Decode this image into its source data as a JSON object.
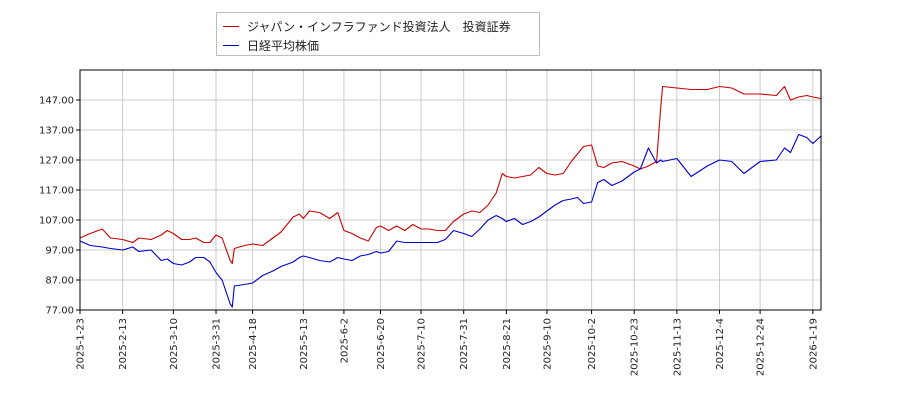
{
  "chart_data": {
    "type": "line",
    "title": "",
    "xlabel": "",
    "ylabel": "",
    "ylim": [
      77.0,
      157.0
    ],
    "yticks": [
      77.0,
      87.0,
      97.0,
      107.0,
      117.0,
      127.0,
      137.0,
      147.0
    ],
    "ytick_labels": [
      "77.00",
      "87.00",
      "97.00",
      "107.00",
      "117.00",
      "127.00",
      "137.00",
      "147.00"
    ],
    "x_start": "2025-01-23",
    "x_end": "2026-01-23",
    "xticks": [
      "2025-1-23",
      "2025-2-13",
      "2025-3-10",
      "2025-3-31",
      "2025-4-18",
      "2025-5-13",
      "2025-6-2",
      "2025-6-20",
      "2025-7-10",
      "2025-7-31",
      "2025-8-21",
      "2025-9-10",
      "2025-10-2",
      "2025-10-23",
      "2025-11-13",
      "2025-12-4",
      "2025-12-24",
      "2026-1-19"
    ],
    "grid": true,
    "legend_position": "top-left",
    "series": [
      {
        "name": "ジャパン・インフラファンド投資法人　投資証券",
        "color": "#cc0000",
        "points": [
          [
            "2025-01-23",
            101.0
          ],
          [
            "2025-01-28",
            102.5
          ],
          [
            "2025-02-03",
            104.0
          ],
          [
            "2025-02-07",
            101.0
          ],
          [
            "2025-02-13",
            100.5
          ],
          [
            "2025-02-18",
            99.5
          ],
          [
            "2025-02-21",
            101.0
          ],
          [
            "2025-02-27",
            100.5
          ],
          [
            "2025-03-04",
            102.0
          ],
          [
            "2025-03-07",
            103.5
          ],
          [
            "2025-03-10",
            102.5
          ],
          [
            "2025-03-14",
            100.5
          ],
          [
            "2025-03-18",
            100.5
          ],
          [
            "2025-03-21",
            101.0
          ],
          [
            "2025-03-25",
            99.5
          ],
          [
            "2025-03-28",
            99.5
          ],
          [
            "2025-03-31",
            102.0
          ],
          [
            "2025-04-03",
            101.0
          ],
          [
            "2025-04-07",
            93.5
          ],
          [
            "2025-04-08",
            92.5
          ],
          [
            "2025-04-09",
            97.5
          ],
          [
            "2025-04-14",
            98.5
          ],
          [
            "2025-04-18",
            99.0
          ],
          [
            "2025-04-23",
            98.5
          ],
          [
            "2025-04-28",
            101.0
          ],
          [
            "2025-05-02",
            103.0
          ],
          [
            "2025-05-08",
            108.0
          ],
          [
            "2025-05-11",
            109.0
          ],
          [
            "2025-05-13",
            107.5
          ],
          [
            "2025-05-16",
            110.0
          ],
          [
            "2025-05-21",
            109.5
          ],
          [
            "2025-05-26",
            107.5
          ],
          [
            "2025-05-30",
            109.5
          ],
          [
            "2025-06-02",
            103.5
          ],
          [
            "2025-06-06",
            102.5
          ],
          [
            "2025-06-10",
            101.0
          ],
          [
            "2025-06-14",
            100.0
          ],
          [
            "2025-06-18",
            104.5
          ],
          [
            "2025-06-20",
            105.0
          ],
          [
            "2025-06-24",
            103.5
          ],
          [
            "2025-06-28",
            105.0
          ],
          [
            "2025-07-02",
            103.5
          ],
          [
            "2025-07-06",
            105.5
          ],
          [
            "2025-07-10",
            104.0
          ],
          [
            "2025-07-14",
            104.0
          ],
          [
            "2025-07-18",
            103.5
          ],
          [
            "2025-07-22",
            103.5
          ],
          [
            "2025-07-26",
            106.5
          ],
          [
            "2025-07-31",
            109.0
          ],
          [
            "2025-08-04",
            110.0
          ],
          [
            "2025-08-08",
            109.5
          ],
          [
            "2025-08-12",
            112.0
          ],
          [
            "2025-08-16",
            116.0
          ],
          [
            "2025-08-19",
            122.5
          ],
          [
            "2025-08-21",
            121.5
          ],
          [
            "2025-08-25",
            121.0
          ],
          [
            "2025-08-29",
            121.5
          ],
          [
            "2025-09-02",
            122.0
          ],
          [
            "2025-09-06",
            124.5
          ],
          [
            "2025-09-10",
            122.5
          ],
          [
            "2025-09-14",
            122.0
          ],
          [
            "2025-09-18",
            122.5
          ],
          [
            "2025-09-22",
            126.5
          ],
          [
            "2025-09-25",
            129.0
          ],
          [
            "2025-09-28",
            131.5
          ],
          [
            "2025-10-02",
            132.0
          ],
          [
            "2025-10-05",
            125.0
          ],
          [
            "2025-10-08",
            124.5
          ],
          [
            "2025-10-12",
            126.0
          ],
          [
            "2025-10-17",
            126.5
          ],
          [
            "2025-10-23",
            125.0
          ],
          [
            "2025-10-26",
            124.0
          ],
          [
            "2025-10-30",
            125.0
          ],
          [
            "2025-11-03",
            126.5
          ],
          [
            "2025-11-05",
            144.0
          ],
          [
            "2025-11-06",
            151.5
          ],
          [
            "2025-11-13",
            151.0
          ],
          [
            "2025-11-20",
            150.5
          ],
          [
            "2025-11-28",
            150.5
          ],
          [
            "2025-12-04",
            151.5
          ],
          [
            "2025-12-10",
            151.0
          ],
          [
            "2025-12-16",
            149.0
          ],
          [
            "2025-12-24",
            149.0
          ],
          [
            "2026-01-01",
            148.5
          ],
          [
            "2026-01-05",
            151.5
          ],
          [
            "2026-01-08",
            147.0
          ],
          [
            "2026-01-12",
            148.0
          ],
          [
            "2026-01-16",
            148.5
          ],
          [
            "2026-01-19",
            148.0
          ],
          [
            "2026-01-23",
            147.5
          ]
        ]
      },
      {
        "name": "日経平均株価",
        "color": "#0000cc",
        "points": [
          [
            "2025-01-23",
            100.0
          ],
          [
            "2025-01-28",
            98.5
          ],
          [
            "2025-02-03",
            98.0
          ],
          [
            "2025-02-07",
            97.5
          ],
          [
            "2025-02-13",
            97.0
          ],
          [
            "2025-02-18",
            98.0
          ],
          [
            "2025-02-21",
            96.5
          ],
          [
            "2025-02-27",
            97.0
          ],
          [
            "2025-03-04",
            93.5
          ],
          [
            "2025-03-07",
            94.0
          ],
          [
            "2025-03-10",
            92.5
          ],
          [
            "2025-03-14",
            92.0
          ],
          [
            "2025-03-18",
            93.0
          ],
          [
            "2025-03-21",
            94.5
          ],
          [
            "2025-03-25",
            94.5
          ],
          [
            "2025-03-28",
            93.0
          ],
          [
            "2025-03-31",
            89.5
          ],
          [
            "2025-04-03",
            87.0
          ],
          [
            "2025-04-07",
            79.0
          ],
          [
            "2025-04-08",
            78.0
          ],
          [
            "2025-04-09",
            85.0
          ],
          [
            "2025-04-14",
            85.5
          ],
          [
            "2025-04-18",
            86.0
          ],
          [
            "2025-04-23",
            88.5
          ],
          [
            "2025-04-28",
            90.0
          ],
          [
            "2025-05-02",
            91.5
          ],
          [
            "2025-05-08",
            93.0
          ],
          [
            "2025-05-11",
            94.5
          ],
          [
            "2025-05-13",
            95.0
          ],
          [
            "2025-05-16",
            94.5
          ],
          [
            "2025-05-21",
            93.5
          ],
          [
            "2025-05-26",
            93.0
          ],
          [
            "2025-05-30",
            94.5
          ],
          [
            "2025-06-02",
            94.0
          ],
          [
            "2025-06-06",
            93.5
          ],
          [
            "2025-06-10",
            95.0
          ],
          [
            "2025-06-14",
            95.5
          ],
          [
            "2025-06-18",
            96.5
          ],
          [
            "2025-06-20",
            96.0
          ],
          [
            "2025-06-24",
            96.5
          ],
          [
            "2025-06-28",
            100.0
          ],
          [
            "2025-07-02",
            99.5
          ],
          [
            "2025-07-06",
            99.5
          ],
          [
            "2025-07-10",
            99.5
          ],
          [
            "2025-07-14",
            99.5
          ],
          [
            "2025-07-18",
            99.5
          ],
          [
            "2025-07-22",
            100.5
          ],
          [
            "2025-07-26",
            103.5
          ],
          [
            "2025-07-31",
            102.5
          ],
          [
            "2025-08-04",
            101.5
          ],
          [
            "2025-08-08",
            104.0
          ],
          [
            "2025-08-12",
            107.0
          ],
          [
            "2025-08-16",
            108.5
          ],
          [
            "2025-08-19",
            107.5
          ],
          [
            "2025-08-21",
            106.5
          ],
          [
            "2025-08-25",
            107.5
          ],
          [
            "2025-08-29",
            105.5
          ],
          [
            "2025-09-02",
            106.5
          ],
          [
            "2025-09-06",
            108.0
          ],
          [
            "2025-09-10",
            110.0
          ],
          [
            "2025-09-14",
            112.0
          ],
          [
            "2025-09-18",
            113.5
          ],
          [
            "2025-09-22",
            114.0
          ],
          [
            "2025-09-25",
            114.5
          ],
          [
            "2025-09-28",
            112.5
          ],
          [
            "2025-10-02",
            113.0
          ],
          [
            "2025-10-05",
            119.5
          ],
          [
            "2025-10-08",
            120.5
          ],
          [
            "2025-10-12",
            118.5
          ],
          [
            "2025-10-17",
            120.0
          ],
          [
            "2025-10-23",
            123.0
          ],
          [
            "2025-10-26",
            124.0
          ],
          [
            "2025-10-30",
            131.0
          ],
          [
            "2025-11-03",
            126.0
          ],
          [
            "2025-11-05",
            127.0
          ],
          [
            "2025-11-06",
            126.5
          ],
          [
            "2025-11-13",
            127.5
          ],
          [
            "2025-11-20",
            121.5
          ],
          [
            "2025-11-28",
            125.0
          ],
          [
            "2025-12-04",
            127.0
          ],
          [
            "2025-12-10",
            126.5
          ],
          [
            "2025-12-16",
            122.5
          ],
          [
            "2025-12-24",
            126.5
          ],
          [
            "2026-01-01",
            127.0
          ],
          [
            "2026-01-05",
            131.0
          ],
          [
            "2026-01-08",
            129.5
          ],
          [
            "2026-01-12",
            135.5
          ],
          [
            "2026-01-16",
            134.5
          ],
          [
            "2026-01-19",
            132.5
          ],
          [
            "2026-01-23",
            135.0
          ]
        ]
      }
    ]
  }
}
